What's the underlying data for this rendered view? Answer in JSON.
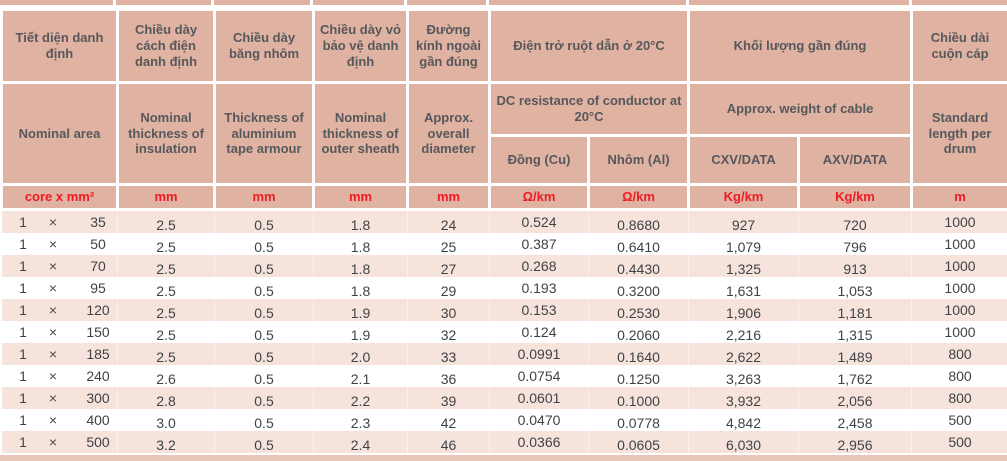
{
  "colors": {
    "header_salmon": "#e0b2a2",
    "row_pink": "#f6e3db",
    "unit_red": "#ed1c24",
    "header_text_gray": "#57585c",
    "body_text": "#3f4347",
    "bottom_strip": "#e9c5b5"
  },
  "table": {
    "header": {
      "vi": [
        "Tiết diện danh định",
        "Chiều dày cách điện danh định",
        "Chiều dày băng nhôm",
        "Chiều dày vỏ bảo vệ danh định",
        "Đường kính ngoài gần đúng",
        "Điện trở ruột dẫn ở 20°C",
        "Khối lượng gần đúng",
        "Chiều dài cuộn cáp"
      ],
      "en": [
        "Nominal area",
        "Nominal thickness of insulation",
        "Thickness of aluminium tape armour",
        "Nominal thickness of outer sheath",
        "Approx. overall diameter",
        "DC resistance of conductor at 20°C",
        "Approx. weight of cable",
        "Standard length per drum"
      ],
      "sub": [
        "Đồng (Cu)",
        "Nhôm (Al)",
        "CXV/DATA",
        "AXV/DATA"
      ],
      "units": [
        "core x mm²",
        "mm",
        "mm",
        "mm",
        "mm",
        "Ω/km",
        "Ω/km",
        "Kg/km",
        "Kg/km",
        "m"
      ]
    },
    "rows": [
      {
        "cores": "1",
        "mult": "×",
        "size": "35",
        "insulation": "2.5",
        "tape": "0.5",
        "sheath": "1.8",
        "diameter": "24",
        "cu": "0.524",
        "al": "0.8680",
        "cxv": "927",
        "axv": "720",
        "length": "1000"
      },
      {
        "cores": "1",
        "mult": "×",
        "size": "50",
        "insulation": "2.5",
        "tape": "0.5",
        "sheath": "1.8",
        "diameter": "25",
        "cu": "0.387",
        "al": "0.6410",
        "cxv": "1,079",
        "axv": "796",
        "length": "1000"
      },
      {
        "cores": "1",
        "mult": "×",
        "size": "70",
        "insulation": "2.5",
        "tape": "0.5",
        "sheath": "1.8",
        "diameter": "27",
        "cu": "0.268",
        "al": "0.4430",
        "cxv": "1,325",
        "axv": "913",
        "length": "1000"
      },
      {
        "cores": "1",
        "mult": "×",
        "size": "95",
        "insulation": "2.5",
        "tape": "0.5",
        "sheath": "1.8",
        "diameter": "29",
        "cu": "0.193",
        "al": "0.3200",
        "cxv": "1,631",
        "axv": "1,053",
        "length": "1000"
      },
      {
        "cores": "1",
        "mult": "×",
        "size": "120",
        "insulation": "2.5",
        "tape": "0.5",
        "sheath": "1.9",
        "diameter": "30",
        "cu": "0.153",
        "al": "0.2530",
        "cxv": "1,906",
        "axv": "1,181",
        "length": "1000"
      },
      {
        "cores": "1",
        "mult": "×",
        "size": "150",
        "insulation": "2.5",
        "tape": "0.5",
        "sheath": "1.9",
        "diameter": "32",
        "cu": "0.124",
        "al": "0.2060",
        "cxv": "2,216",
        "axv": "1,315",
        "length": "1000"
      },
      {
        "cores": "1",
        "mult": "×",
        "size": "185",
        "insulation": "2.5",
        "tape": "0.5",
        "sheath": "2.0",
        "diameter": "33",
        "cu": "0.0991",
        "al": "0.1640",
        "cxv": "2,622",
        "axv": "1,489",
        "length": "800"
      },
      {
        "cores": "1",
        "mult": "×",
        "size": "240",
        "insulation": "2.6",
        "tape": "0.5",
        "sheath": "2.1",
        "diameter": "36",
        "cu": "0.0754",
        "al": "0.1250",
        "cxv": "3,263",
        "axv": "1,762",
        "length": "800"
      },
      {
        "cores": "1",
        "mult": "×",
        "size": "300",
        "insulation": "2.8",
        "tape": "0.5",
        "sheath": "2.2",
        "diameter": "39",
        "cu": "0.0601",
        "al": "0.1000",
        "cxv": "3,932",
        "axv": "2,056",
        "length": "800"
      },
      {
        "cores": "1",
        "mult": "×",
        "size": "400",
        "insulation": "3.0",
        "tape": "0.5",
        "sheath": "2.3",
        "diameter": "42",
        "cu": "0.0470",
        "al": "0.0778",
        "cxv": "4,842",
        "axv": "2,458",
        "length": "500"
      },
      {
        "cores": "1",
        "mult": "×",
        "size": "500",
        "insulation": "3.2",
        "tape": "0.5",
        "sheath": "2.4",
        "diameter": "46",
        "cu": "0.0366",
        "al": "0.0605",
        "cxv": "6,030",
        "axv": "2,956",
        "length": "500"
      }
    ]
  }
}
